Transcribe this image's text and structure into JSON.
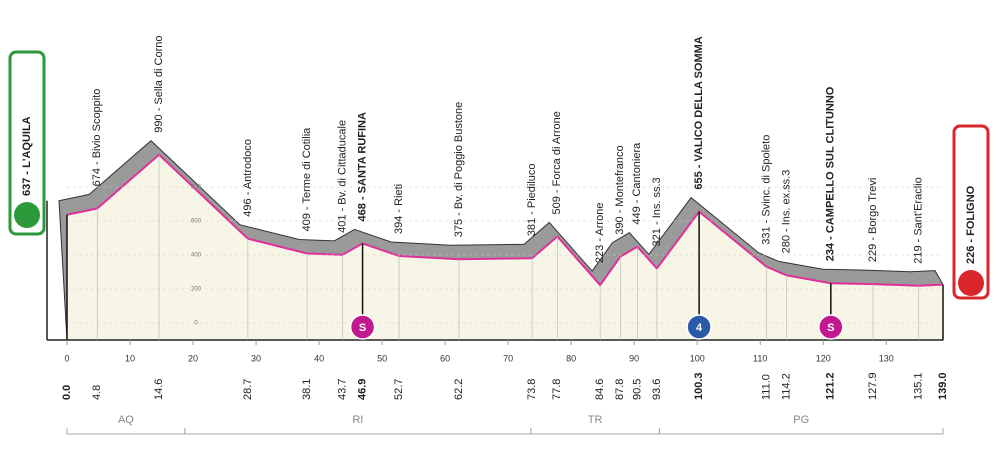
{
  "chart_data": {
    "type": "area",
    "x": [
      0.0,
      4.8,
      14.6,
      28.7,
      38.1,
      43.7,
      46.9,
      52.7,
      62.2,
      73.8,
      77.8,
      84.6,
      87.8,
      90.5,
      93.6,
      100.3,
      111.0,
      114.2,
      121.2,
      127.9,
      135.1,
      139.0
    ],
    "x_labels": [
      "0.0",
      "4.8",
      "14.6",
      "28.7",
      "38.1",
      "43.7",
      "46.9",
      "52.7",
      "62.2",
      "73.8",
      "77.8",
      "84.6",
      "87.8",
      "90.5",
      "93.6",
      "100.3",
      "111.0",
      "114.2",
      "121.2",
      "127.9",
      "135.1",
      "139.0"
    ],
    "values": [
      637,
      674,
      990,
      496,
      409,
      401,
      468,
      394,
      375,
      381,
      509,
      223,
      390,
      449,
      321,
      655,
      331,
      280,
      234,
      229,
      219,
      226
    ],
    "value_labels": [
      "637 - L'AQUILA",
      "674 - Bivio Scoppito",
      "990 - Sella di Corno",
      "496 - Antrodoco",
      "409 - Terme di Cotilia",
      "401 - Bv. di Cittaducale",
      "468 - SANTA RUFINA",
      "394 - Rieti",
      "375 - Bv. di Poggio Bustone",
      "381 - Piediluco",
      "509 - Forca di Arrone",
      "223 - Arrone",
      "390 - Montefranco",
      "449 - Cantoniera",
      "321 - Ins. ss.3",
      "655 - VALICO DELLA SOMMA",
      "331 - Svinc. di Spoleto",
      "280 - Ins. ex.ss.3",
      "234 - CAMPELLO SUL CLITUNNO",
      "229 - Borgo Trevi",
      "219 - Sant'Eraclio",
      "226 - FOLIGNO"
    ],
    "highlight": [
      0,
      6,
      15,
      18,
      21
    ],
    "markers": [
      {
        "at": 6,
        "label": "S",
        "color": "#c2188f"
      },
      {
        "at": 15,
        "label": "4",
        "color": "#2a5aa8"
      },
      {
        "at": 18,
        "label": "S",
        "color": "#c2188f"
      }
    ],
    "color": "#e0309a",
    "xlim": [
      0,
      139
    ],
    "xticks": [
      0,
      10,
      20,
      30,
      40,
      50,
      60,
      70,
      80,
      90,
      100,
      110,
      120,
      130
    ],
    "ylim": [
      -100,
      1100
    ],
    "yticks": [
      0,
      200,
      400,
      600,
      800
    ],
    "regions": [
      {
        "name": "AQ",
        "from": 0,
        "to": 18.7
      },
      {
        "name": "RI",
        "from": 18.7,
        "to": 73.6
      },
      {
        "name": "TR",
        "from": 73.6,
        "to": 94
      },
      {
        "name": "PG",
        "from": 94,
        "to": 139
      }
    ]
  }
}
